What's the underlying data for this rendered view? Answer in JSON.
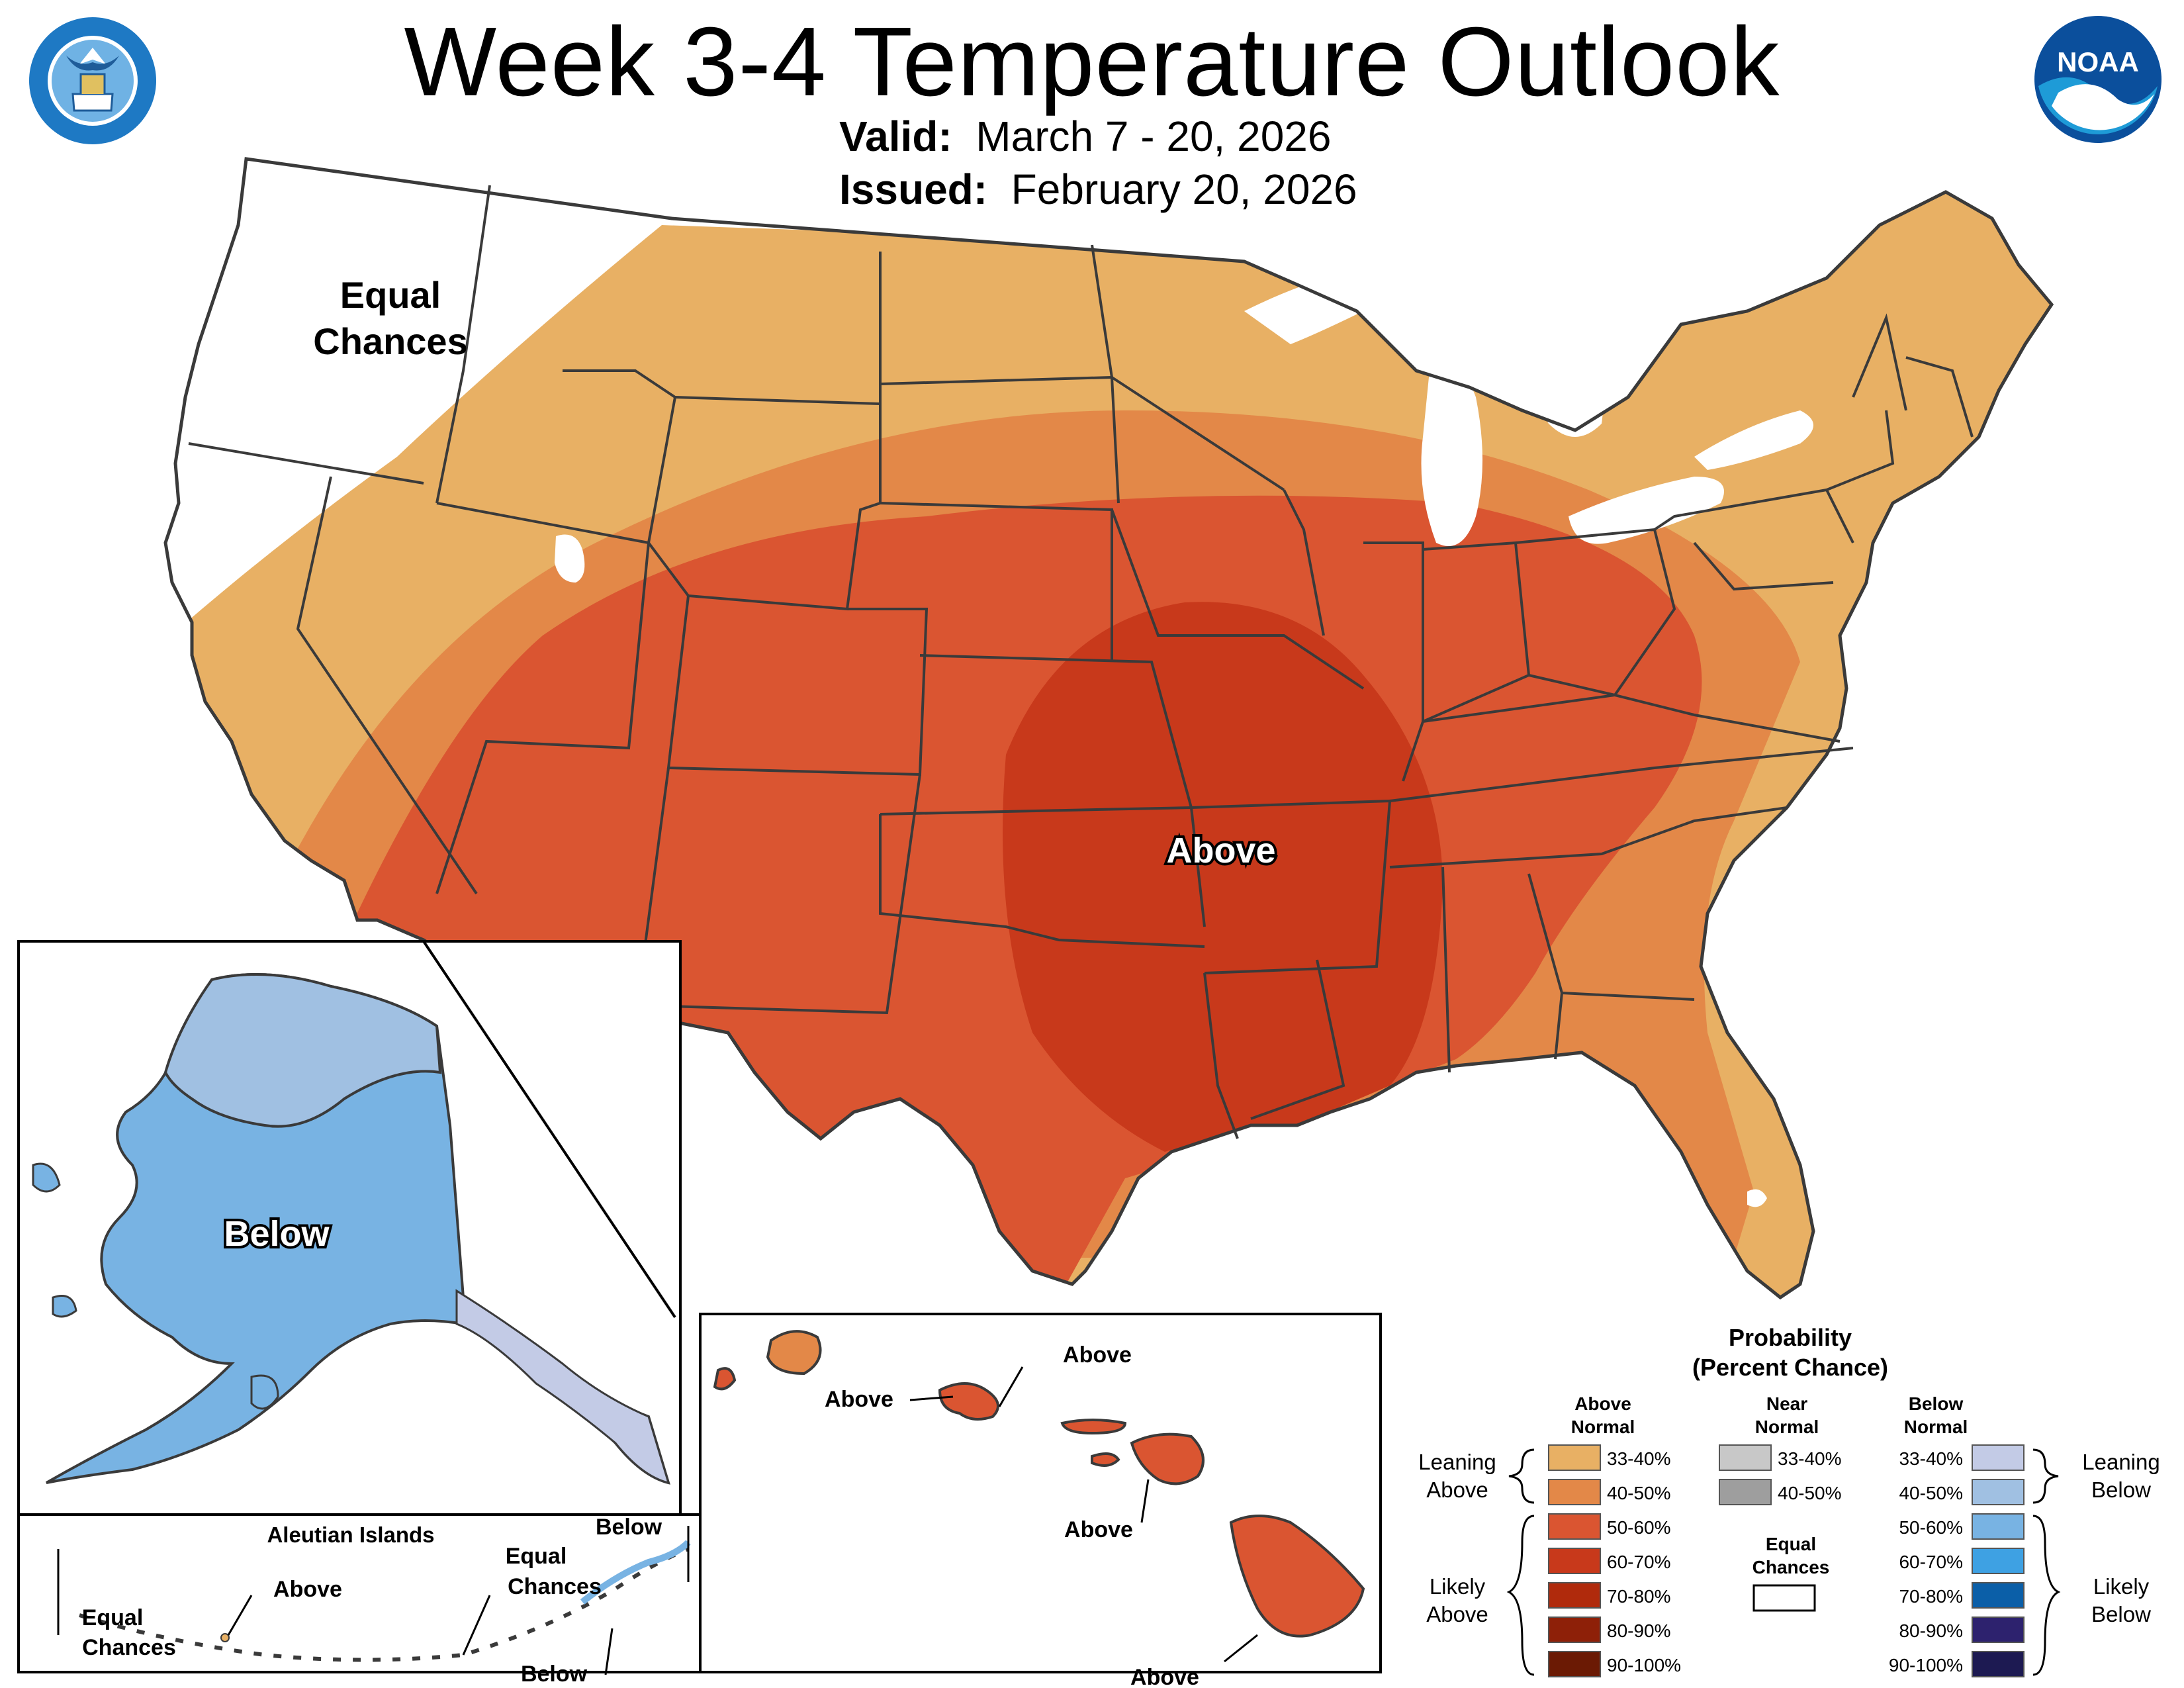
{
  "header": {
    "title": "Week 3-4 Temperature Outlook",
    "valid_label": "Valid:",
    "valid_value": "March 7 - 20, 2026",
    "issued_label": "Issued:",
    "issued_value": "February 20, 2026"
  },
  "logos": {
    "commerce_icon": "department-of-commerce-seal-icon",
    "noaa_icon": "noaa-logo-icon",
    "noaa_text": "NOAA"
  },
  "map_labels": {
    "conus_equal_line1": "Equal",
    "conus_equal_line2": "Chances",
    "conus_above": "Above",
    "alaska_below": "Below",
    "aleutian_title": "Aleutian Islands",
    "aleutian_equal_left_line1": "Equal",
    "aleutian_equal_left_line2": "Chances",
    "aleutian_above": "Above",
    "aleutian_equal_right_line1": "Equal",
    "aleutian_equal_right_line2": "Chances",
    "aleutian_below_top": "Below",
    "aleutian_below_bottom": "Below",
    "hawaii_above_1": "Above",
    "hawaii_above_2": "Above",
    "hawaii_above_3": "Above",
    "hawaii_above_4": "Above"
  },
  "legend": {
    "title_line1": "Probability",
    "title_line2": "(Percent Chance)",
    "above_header_line1": "Above",
    "above_header_line2": "Normal",
    "near_header_line1": "Near",
    "near_header_line2": "Normal",
    "below_header_line1": "Below",
    "below_header_line2": "Normal",
    "leaning_above_line1": "Leaning",
    "leaning_above_line2": "Above",
    "likely_above_line1": "Likely",
    "likely_above_line2": "Above",
    "leaning_below_line1": "Leaning",
    "leaning_below_line2": "Below",
    "likely_below_line1": "Likely",
    "likely_below_line2": "Below",
    "equal_line1": "Equal",
    "equal_line2": "Chances",
    "above_bins": [
      {
        "range": "33-40%",
        "color": "#E8B064"
      },
      {
        "range": "40-50%",
        "color": "#E38848"
      },
      {
        "range": "50-60%",
        "color": "#DA5531"
      },
      {
        "range": "60-70%",
        "color": "#C8391B"
      },
      {
        "range": "70-80%",
        "color": "#B02A0C"
      },
      {
        "range": "80-90%",
        "color": "#8E2008"
      },
      {
        "range": "90-100%",
        "color": "#6B1A04"
      }
    ],
    "near_bins": [
      {
        "range": "33-40%",
        "color": "#C8C8C8"
      },
      {
        "range": "40-50%",
        "color": "#9E9E9E"
      }
    ],
    "below_bins": [
      {
        "range": "33-40%",
        "color": "#C3CBE6"
      },
      {
        "range": "40-50%",
        "color": "#A0C0E2"
      },
      {
        "range": "50-60%",
        "color": "#78B3E3"
      },
      {
        "range": "60-70%",
        "color": "#3EA1E3"
      },
      {
        "range": "70-80%",
        "color": "#0B5FA8"
      },
      {
        "range": "80-90%",
        "color": "#2D226E"
      },
      {
        "range": "90-100%",
        "color": "#1D1A52"
      }
    ],
    "equal_color": "#FFFFFF"
  }
}
